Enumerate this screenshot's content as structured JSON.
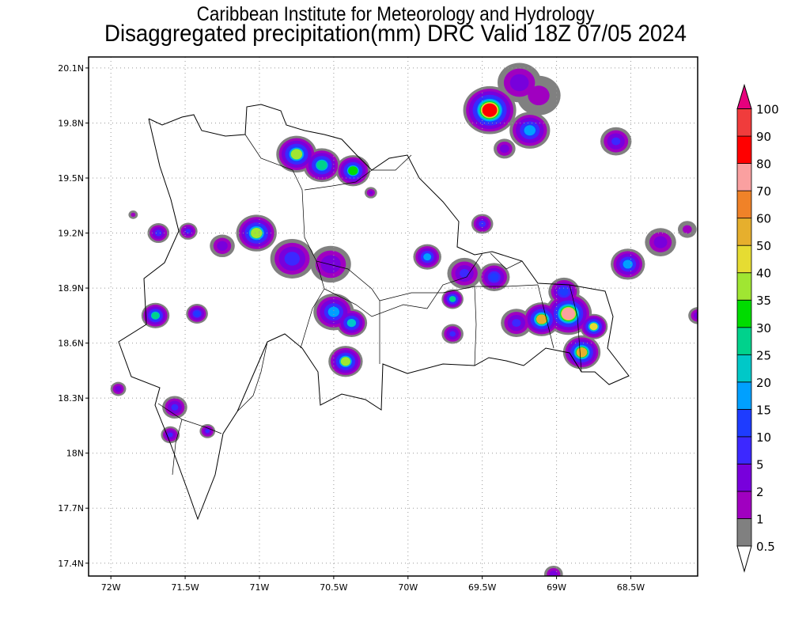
{
  "title": {
    "line1": "Caribbean Institute for Meteorology and Hydrology",
    "line2": "Disaggregated precipitation(mm) DRC Valid 18Z 07/05 2024"
  },
  "chart_data": {
    "type": "heatmap",
    "title": "Disaggregated precipitation(mm) DRC Valid 18Z 07/05 2024",
    "xlabel": "",
    "ylabel": "",
    "xlim": [
      -72.15,
      -68.05
    ],
    "ylim": [
      17.33,
      20.16
    ],
    "grid": true,
    "x_ticks": [
      {
        "v": -72,
        "label": "72W"
      },
      {
        "v": -71.5,
        "label": "71.5W"
      },
      {
        "v": -71,
        "label": "71W"
      },
      {
        "v": -70.5,
        "label": "70.5W"
      },
      {
        "v": -70,
        "label": "70W"
      },
      {
        "v": -69.5,
        "label": "69.5W"
      },
      {
        "v": -69,
        "label": "69W"
      },
      {
        "v": -68.5,
        "label": "68.5W"
      }
    ],
    "y_ticks": [
      {
        "v": 20.1,
        "label": "20.1N"
      },
      {
        "v": 19.8,
        "label": "19.8N"
      },
      {
        "v": 19.5,
        "label": "19.5N"
      },
      {
        "v": 19.2,
        "label": "19.2N"
      },
      {
        "v": 18.9,
        "label": "18.9N"
      },
      {
        "v": 18.6,
        "label": "18.6N"
      },
      {
        "v": 18.3,
        "label": "18.3N"
      },
      {
        "v": 18.0,
        "label": "18N"
      },
      {
        "v": 17.7,
        "label": "17.7N"
      },
      {
        "v": 17.4,
        "label": "17.4N"
      }
    ],
    "colorbar": {
      "levels": [
        "0.5",
        "1",
        "2",
        "5",
        "10",
        "15",
        "20",
        "25",
        "30",
        "35",
        "40",
        "50",
        "60",
        "70",
        "80",
        "90",
        "100"
      ],
      "colors": [
        "#808080",
        "#a000c0",
        "#7800dc",
        "#3c28ff",
        "#1e3cff",
        "#00a0ff",
        "#00c8c8",
        "#00d28c",
        "#00dc00",
        "#a0e632",
        "#e6dc32",
        "#e6af2d",
        "#f08228",
        "#faa0a0",
        "#ff0000",
        "#f03c3c",
        "#e6007d"
      ],
      "thresholds": [
        0.5,
        1,
        2,
        5,
        10,
        15,
        20,
        25,
        30,
        35,
        40,
        50,
        60,
        70,
        80,
        90,
        100
      ]
    },
    "cells": [
      {
        "lon": -69.45,
        "lat": 19.87,
        "r": 0.17,
        "peak": 85
      },
      {
        "lon": -69.25,
        "lat": 20.02,
        "r": 0.14,
        "peak": 3
      },
      {
        "lon": -69.12,
        "lat": 19.95,
        "r": 0.14,
        "peak": 1
      },
      {
        "lon": -69.18,
        "lat": 19.76,
        "r": 0.13,
        "peak": 18
      },
      {
        "lon": -69.35,
        "lat": 19.66,
        "r": 0.07,
        "peak": 3
      },
      {
        "lon": -68.6,
        "lat": 19.7,
        "r": 0.1,
        "peak": 6
      },
      {
        "lon": -70.75,
        "lat": 19.63,
        "r": 0.13,
        "peak": 35
      },
      {
        "lon": -70.58,
        "lat": 19.57,
        "r": 0.12,
        "peak": 28
      },
      {
        "lon": -70.37,
        "lat": 19.54,
        "r": 0.11,
        "peak": 32
      },
      {
        "lon": -70.25,
        "lat": 19.42,
        "r": 0.04,
        "peak": 2
      },
      {
        "lon": -71.02,
        "lat": 19.2,
        "r": 0.13,
        "peak": 38
      },
      {
        "lon": -71.25,
        "lat": 19.13,
        "r": 0.08,
        "peak": 3
      },
      {
        "lon": -70.78,
        "lat": 19.06,
        "r": 0.14,
        "peak": 8
      },
      {
        "lon": -70.52,
        "lat": 19.03,
        "r": 0.13,
        "peak": 4
      },
      {
        "lon": -71.68,
        "lat": 19.2,
        "r": 0.07,
        "peak": 7
      },
      {
        "lon": -71.48,
        "lat": 19.21,
        "r": 0.06,
        "peak": 6
      },
      {
        "lon": -69.5,
        "lat": 19.25,
        "r": 0.07,
        "peak": 7
      },
      {
        "lon": -69.87,
        "lat": 19.07,
        "r": 0.09,
        "peak": 16
      },
      {
        "lon": -69.62,
        "lat": 18.98,
        "r": 0.11,
        "peak": 5
      },
      {
        "lon": -69.7,
        "lat": 18.84,
        "r": 0.07,
        "peak": 26
      },
      {
        "lon": -69.42,
        "lat": 18.96,
        "r": 0.1,
        "peak": 11
      },
      {
        "lon": -69.7,
        "lat": 18.65,
        "r": 0.07,
        "peak": 6
      },
      {
        "lon": -70.5,
        "lat": 18.77,
        "r": 0.13,
        "peak": 16
      },
      {
        "lon": -70.38,
        "lat": 18.71,
        "r": 0.1,
        "peak": 22
      },
      {
        "lon": -70.42,
        "lat": 18.5,
        "r": 0.11,
        "peak": 36
      },
      {
        "lon": -71.7,
        "lat": 18.75,
        "r": 0.09,
        "peak": 26
      },
      {
        "lon": -71.42,
        "lat": 18.76,
        "r": 0.07,
        "peak": 11
      },
      {
        "lon": -69.27,
        "lat": 18.71,
        "r": 0.1,
        "peak": 6
      },
      {
        "lon": -69.1,
        "lat": 18.73,
        "r": 0.12,
        "peak": 52
      },
      {
        "lon": -68.92,
        "lat": 18.76,
        "r": 0.15,
        "peak": 75
      },
      {
        "lon": -68.83,
        "lat": 18.55,
        "r": 0.12,
        "peak": 55
      },
      {
        "lon": -68.75,
        "lat": 18.69,
        "r": 0.09,
        "peak": 42
      },
      {
        "lon": -68.95,
        "lat": 18.88,
        "r": 0.1,
        "peak": 12
      },
      {
        "lon": -68.52,
        "lat": 19.03,
        "r": 0.11,
        "peak": 17
      },
      {
        "lon": -68.3,
        "lat": 19.15,
        "r": 0.1,
        "peak": 3
      },
      {
        "lon": -68.12,
        "lat": 19.22,
        "r": 0.06,
        "peak": 1
      },
      {
        "lon": -68.05,
        "lat": 18.75,
        "r": 0.06,
        "peak": 3
      },
      {
        "lon": -71.95,
        "lat": 18.35,
        "r": 0.05,
        "peak": 3
      },
      {
        "lon": -71.57,
        "lat": 18.25,
        "r": 0.08,
        "peak": 6
      },
      {
        "lon": -71.6,
        "lat": 18.1,
        "r": 0.06,
        "peak": 6
      },
      {
        "lon": -71.35,
        "lat": 18.12,
        "r": 0.05,
        "peak": 5
      },
      {
        "lon": -71.85,
        "lat": 19.3,
        "r": 0.03,
        "peak": 1
      },
      {
        "lon": -69.02,
        "lat": 17.34,
        "r": 0.06,
        "peak": 3
      }
    ]
  }
}
